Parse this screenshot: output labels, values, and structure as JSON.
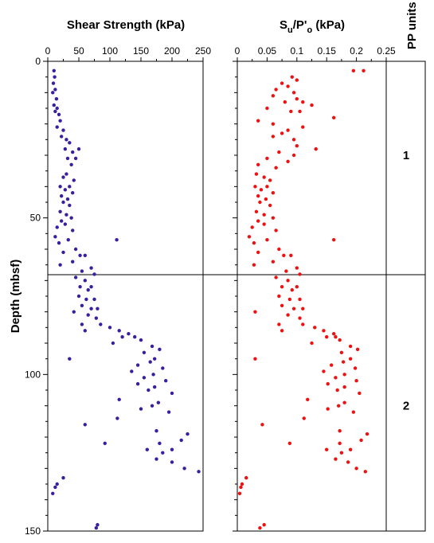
{
  "chart_data": [
    {
      "type": "scatter",
      "title": "Shear Strength (kPa)",
      "ylabel": "Depth (mbsf)",
      "xlim": [
        0,
        250
      ],
      "ylim": [
        0,
        150
      ],
      "y_inverted": true,
      "xticks": [
        "0",
        "50",
        "100",
        "150",
        "200",
        "250"
      ],
      "yticks": [
        "0",
        "50",
        "100",
        "150"
      ],
      "color": "#3a1ea0",
      "points": [
        [
          10,
          3
        ],
        [
          11,
          5
        ],
        [
          9,
          7
        ],
        [
          12,
          9
        ],
        [
          8,
          10
        ],
        [
          14,
          12
        ],
        [
          10,
          14
        ],
        [
          15,
          15
        ],
        [
          12,
          16
        ],
        [
          18,
          17
        ],
        [
          20,
          19
        ],
        [
          15,
          21
        ],
        [
          25,
          22
        ],
        [
          22,
          24
        ],
        [
          30,
          25
        ],
        [
          35,
          26
        ],
        [
          28,
          28
        ],
        [
          40,
          29
        ],
        [
          50,
          28
        ],
        [
          32,
          31
        ],
        [
          45,
          31
        ],
        [
          38,
          33
        ],
        [
          30,
          36
        ],
        [
          25,
          37
        ],
        [
          42,
          38
        ],
        [
          20,
          40
        ],
        [
          35,
          40
        ],
        [
          28,
          41
        ],
        [
          40,
          42
        ],
        [
          22,
          43
        ],
        [
          32,
          44
        ],
        [
          25,
          45
        ],
        [
          35,
          46
        ],
        [
          20,
          48
        ],
        [
          30,
          49
        ],
        [
          38,
          50
        ],
        [
          22,
          51
        ],
        [
          28,
          52
        ],
        [
          15,
          53
        ],
        [
          40,
          54
        ],
        [
          12,
          56
        ],
        [
          33,
          57
        ],
        [
          111,
          57
        ],
        [
          18,
          58
        ],
        [
          45,
          60
        ],
        [
          25,
          61
        ],
        [
          52,
          62
        ],
        [
          60,
          62
        ],
        [
          40,
          64
        ],
        [
          20,
          65
        ],
        [
          70,
          66
        ],
        [
          55,
          67
        ],
        [
          75,
          68
        ],
        [
          45,
          69
        ],
        [
          60,
          70
        ],
        [
          52,
          72
        ],
        [
          70,
          72
        ],
        [
          65,
          73
        ],
        [
          50,
          75
        ],
        [
          62,
          76
        ],
        [
          75,
          76
        ],
        [
          55,
          78
        ],
        [
          70,
          79
        ],
        [
          80,
          79
        ],
        [
          42,
          80
        ],
        [
          65,
          81
        ],
        [
          78,
          82
        ],
        [
          55,
          84
        ],
        [
          85,
          84
        ],
        [
          100,
          85
        ],
        [
          60,
          86
        ],
        [
          115,
          86
        ],
        [
          130,
          87
        ],
        [
          120,
          88
        ],
        [
          140,
          88
        ],
        [
          150,
          89
        ],
        [
          105,
          90
        ],
        [
          168,
          91
        ],
        [
          180,
          92
        ],
        [
          155,
          93
        ],
        [
          35,
          95
        ],
        [
          172,
          95
        ],
        [
          165,
          96
        ],
        [
          145,
          97
        ],
        [
          185,
          98
        ],
        [
          135,
          99
        ],
        [
          170,
          100
        ],
        [
          155,
          101
        ],
        [
          190,
          102
        ],
        [
          145,
          103
        ],
        [
          172,
          104
        ],
        [
          162,
          105
        ],
        [
          200,
          106
        ],
        [
          115,
          108
        ],
        [
          178,
          109
        ],
        [
          168,
          110
        ],
        [
          150,
          111
        ],
        [
          195,
          112
        ],
        [
          112,
          114
        ],
        [
          60,
          116
        ],
        [
          175,
          118
        ],
        [
          225,
          119
        ],
        [
          215,
          121
        ],
        [
          92,
          122
        ],
        [
          180,
          122
        ],
        [
          200,
          124
        ],
        [
          160,
          124
        ],
        [
          185,
          125
        ],
        [
          175,
          127
        ],
        [
          200,
          128
        ],
        [
          220,
          130
        ],
        [
          243,
          131
        ],
        [
          25,
          133
        ],
        [
          15,
          135
        ],
        [
          12,
          136
        ],
        [
          8,
          138
        ],
        [
          80,
          148
        ],
        [
          78,
          149
        ]
      ]
    },
    {
      "type": "scatter",
      "title_main": "S",
      "title_sub": "u",
      "title_mid": "/P'",
      "title_sub2": "o",
      "title_unit": " (kPa)",
      "xlim": [
        0,
        0.25
      ],
      "ylim": [
        0,
        150
      ],
      "y_inverted": true,
      "xticks": [
        "0",
        "0.05",
        "0.1",
        "0.15",
        "0.2",
        "0.25"
      ],
      "color": "#ee1111",
      "points": [
        [
          0.195,
          3
        ],
        [
          0.212,
          3
        ],
        [
          0.092,
          5
        ],
        [
          0.1,
          6
        ],
        [
          0.075,
          7
        ],
        [
          0.085,
          8
        ],
        [
          0.065,
          9
        ],
        [
          0.095,
          10
        ],
        [
          0.06,
          11
        ],
        [
          0.1,
          12
        ],
        [
          0.08,
          13
        ],
        [
          0.11,
          13
        ],
        [
          0.125,
          14
        ],
        [
          0.05,
          15
        ],
        [
          0.09,
          16
        ],
        [
          0.105,
          16
        ],
        [
          0.162,
          18
        ],
        [
          0.035,
          19
        ],
        [
          0.06,
          20
        ],
        [
          0.11,
          21
        ],
        [
          0.085,
          22
        ],
        [
          0.075,
          23
        ],
        [
          0.06,
          24
        ],
        [
          0.095,
          25
        ],
        [
          0.1,
          27
        ],
        [
          0.132,
          28
        ],
        [
          0.07,
          29
        ],
        [
          0.095,
          30
        ],
        [
          0.05,
          31
        ],
        [
          0.085,
          32
        ],
        [
          0.035,
          33
        ],
        [
          0.065,
          34
        ],
        [
          0.032,
          36
        ],
        [
          0.045,
          37
        ],
        [
          0.055,
          38
        ],
        [
          0.03,
          40
        ],
        [
          0.05,
          40
        ],
        [
          0.04,
          41
        ],
        [
          0.06,
          42
        ],
        [
          0.035,
          43
        ],
        [
          0.048,
          44
        ],
        [
          0.038,
          45
        ],
        [
          0.055,
          46
        ],
        [
          0.032,
          48
        ],
        [
          0.045,
          49
        ],
        [
          0.06,
          50
        ],
        [
          0.035,
          51
        ],
        [
          0.045,
          52
        ],
        [
          0.025,
          53
        ],
        [
          0.065,
          54
        ],
        [
          0.02,
          56
        ],
        [
          0.05,
          57
        ],
        [
          0.162,
          57
        ],
        [
          0.028,
          58
        ],
        [
          0.07,
          60
        ],
        [
          0.035,
          61
        ],
        [
          0.078,
          62
        ],
        [
          0.09,
          62
        ],
        [
          0.06,
          64
        ],
        [
          0.028,
          65
        ],
        [
          0.1,
          66
        ],
        [
          0.082,
          67
        ],
        [
          0.105,
          68
        ],
        [
          0.065,
          69
        ],
        [
          0.085,
          70
        ],
        [
          0.075,
          72
        ],
        [
          0.1,
          72
        ],
        [
          0.092,
          73
        ],
        [
          0.07,
          75
        ],
        [
          0.088,
          76
        ],
        [
          0.105,
          76
        ],
        [
          0.075,
          78
        ],
        [
          0.095,
          79
        ],
        [
          0.11,
          79
        ],
        [
          0.03,
          80
        ],
        [
          0.085,
          81
        ],
        [
          0.105,
          82
        ],
        [
          0.07,
          84
        ],
        [
          0.11,
          84
        ],
        [
          0.13,
          85
        ],
        [
          0.075,
          86
        ],
        [
          0.145,
          86
        ],
        [
          0.162,
          87
        ],
        [
          0.15,
          88
        ],
        [
          0.165,
          88
        ],
        [
          0.172,
          89
        ],
        [
          0.125,
          90
        ],
        [
          0.19,
          91
        ],
        [
          0.202,
          92
        ],
        [
          0.175,
          93
        ],
        [
          0.03,
          95
        ],
        [
          0.19,
          95
        ],
        [
          0.178,
          96
        ],
        [
          0.158,
          97
        ],
        [
          0.198,
          98
        ],
        [
          0.145,
          99
        ],
        [
          0.18,
          100
        ],
        [
          0.165,
          101
        ],
        [
          0.2,
          102
        ],
        [
          0.152,
          103
        ],
        [
          0.18,
          104
        ],
        [
          0.168,
          105
        ],
        [
          0.205,
          106
        ],
        [
          0.118,
          108
        ],
        [
          0.18,
          109
        ],
        [
          0.17,
          110
        ],
        [
          0.152,
          111
        ],
        [
          0.195,
          112
        ],
        [
          0.112,
          114
        ],
        [
          0.042,
          116
        ],
        [
          0.172,
          118
        ],
        [
          0.218,
          119
        ],
        [
          0.208,
          121
        ],
        [
          0.088,
          122
        ],
        [
          0.172,
          122
        ],
        [
          0.19,
          124
        ],
        [
          0.15,
          124
        ],
        [
          0.175,
          125
        ],
        [
          0.165,
          127
        ],
        [
          0.186,
          128
        ],
        [
          0.2,
          130
        ],
        [
          0.215,
          131
        ],
        [
          0.015,
          133
        ],
        [
          0.008,
          135
        ],
        [
          0.006,
          136
        ],
        [
          0.004,
          138
        ],
        [
          0.045,
          148
        ],
        [
          0.038,
          149
        ]
      ]
    }
  ],
  "units_panel": {
    "title": "PP units",
    "boundary_depth": 68,
    "units": [
      {
        "label": "1",
        "depth": 30
      },
      {
        "label": "2",
        "depth": 110
      }
    ]
  }
}
